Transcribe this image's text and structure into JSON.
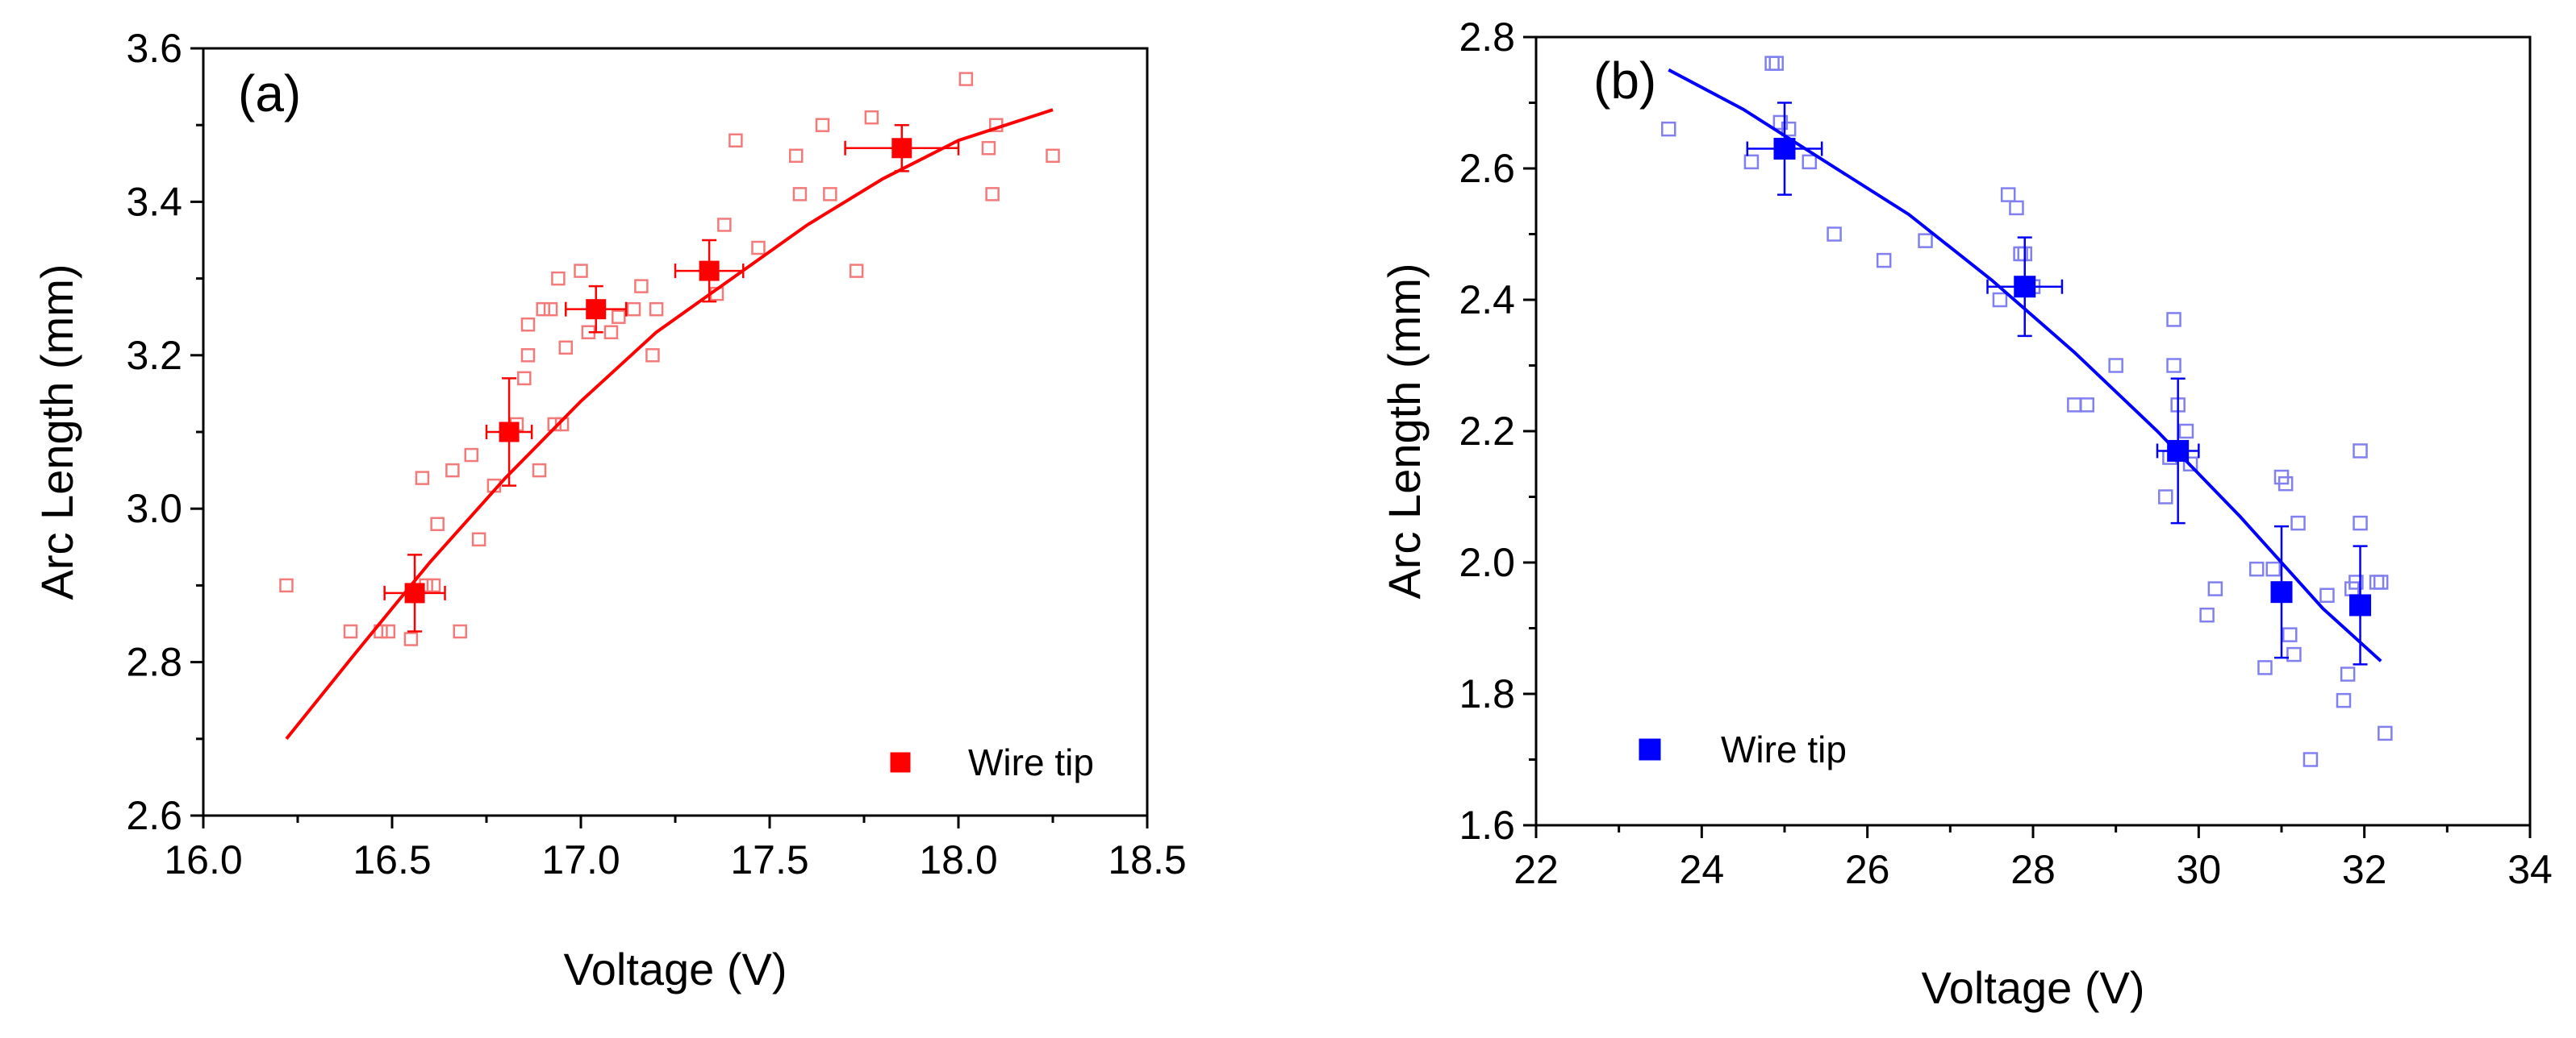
{
  "chart_data": [
    {
      "type": "scatter",
      "panel_label": "(a)",
      "xlabel": "Voltage (V)",
      "ylabel": "Arc Length (mm)",
      "xlim": [
        16.0,
        18.5
      ],
      "ylim": [
        2.6,
        3.6
      ],
      "xticks": [
        "16.0",
        "16.5",
        "17.0",
        "17.5",
        "18.0",
        "18.5"
      ],
      "yticks": [
        "2.6",
        "2.8",
        "3.0",
        "3.2",
        "3.4",
        "3.6"
      ],
      "colors": {
        "main": "#ff0000",
        "raw": "#f47a7a"
      },
      "legend": {
        "label": "Wire tip",
        "position": "bottom-right"
      },
      "raw_points": [
        [
          16.22,
          2.9
        ],
        [
          16.39,
          2.84
        ],
        [
          16.47,
          2.84
        ],
        [
          16.49,
          2.84
        ],
        [
          16.55,
          2.83
        ],
        [
          16.59,
          2.9
        ],
        [
          16.61,
          2.9
        ],
        [
          16.68,
          2.84
        ],
        [
          16.58,
          3.04
        ],
        [
          16.62,
          2.98
        ],
        [
          16.66,
          3.05
        ],
        [
          16.71,
          3.07
        ],
        [
          16.73,
          2.96
        ],
        [
          16.77,
          3.03
        ],
        [
          16.83,
          3.11
        ],
        [
          16.85,
          3.17
        ],
        [
          16.86,
          3.2
        ],
        [
          16.86,
          3.24
        ],
        [
          16.89,
          3.05
        ],
        [
          16.9,
          3.26
        ],
        [
          16.92,
          3.26
        ],
        [
          16.93,
          3.11
        ],
        [
          16.95,
          3.11
        ],
        [
          16.94,
          3.3
        ],
        [
          16.96,
          3.21
        ],
        [
          17.0,
          3.31
        ],
        [
          17.02,
          3.23
        ],
        [
          17.08,
          3.23
        ],
        [
          17.1,
          3.25
        ],
        [
          17.14,
          3.26
        ],
        [
          17.16,
          3.29
        ],
        [
          17.19,
          3.2
        ],
        [
          17.2,
          3.26
        ],
        [
          17.36,
          3.28
        ],
        [
          17.38,
          3.37
        ],
        [
          17.41,
          3.48
        ],
        [
          17.47,
          3.34
        ],
        [
          17.57,
          3.46
        ],
        [
          17.58,
          3.41
        ],
        [
          17.64,
          3.5
        ],
        [
          17.66,
          3.41
        ],
        [
          17.73,
          3.31
        ],
        [
          17.77,
          3.51
        ],
        [
          18.02,
          3.56
        ],
        [
          18.08,
          3.47
        ],
        [
          18.09,
          3.41
        ],
        [
          18.1,
          3.5
        ],
        [
          18.25,
          3.46
        ]
      ],
      "mean_points": [
        {
          "x": 16.56,
          "y": 2.89,
          "xerr": 0.08,
          "yerr": 0.05
        },
        {
          "x": 16.81,
          "y": 3.1,
          "xerr": 0.06,
          "yerr": 0.07
        },
        {
          "x": 17.04,
          "y": 3.26,
          "xerr": 0.08,
          "yerr": 0.03
        },
        {
          "x": 17.34,
          "y": 3.31,
          "xerr": 0.09,
          "yerr": 0.04
        },
        {
          "x": 17.85,
          "y": 3.47,
          "xerr": 0.15,
          "yerr": 0.03
        }
      ],
      "fit_curve": [
        [
          16.22,
          2.7
        ],
        [
          16.4,
          2.81
        ],
        [
          16.6,
          2.93
        ],
        [
          16.8,
          3.04
        ],
        [
          17.0,
          3.14
        ],
        [
          17.2,
          3.23
        ],
        [
          17.4,
          3.3
        ],
        [
          17.6,
          3.37
        ],
        [
          17.8,
          3.43
        ],
        [
          18.0,
          3.48
        ],
        [
          18.25,
          3.52
        ]
      ]
    },
    {
      "type": "scatter",
      "panel_label": "(b)",
      "xlabel": "Voltage (V)",
      "ylabel": "Arc Length (mm)",
      "xlim": [
        22,
        34
      ],
      "ylim": [
        1.6,
        2.8
      ],
      "xticks": [
        "22",
        "24",
        "26",
        "28",
        "30",
        "32",
        "34"
      ],
      "yticks": [
        "1.6",
        "1.8",
        "2.0",
        "2.2",
        "2.4",
        "2.6",
        "2.8"
      ],
      "colors": {
        "main": "#0000ff",
        "raw": "#8080f0"
      },
      "legend": {
        "label": "Wire tip",
        "position": "bottom-left"
      },
      "raw_points": [
        [
          23.6,
          2.66
        ],
        [
          24.6,
          2.61
        ],
        [
          24.85,
          2.76
        ],
        [
          24.9,
          2.76
        ],
        [
          24.95,
          2.67
        ],
        [
          25.05,
          2.66
        ],
        [
          25.3,
          2.61
        ],
        [
          25.6,
          2.5
        ],
        [
          26.2,
          2.46
        ],
        [
          26.7,
          2.49
        ],
        [
          27.6,
          2.4
        ],
        [
          27.7,
          2.56
        ],
        [
          27.8,
          2.54
        ],
        [
          27.85,
          2.47
        ],
        [
          27.9,
          2.47
        ],
        [
          28.0,
          2.42
        ],
        [
          28.5,
          2.24
        ],
        [
          28.65,
          2.24
        ],
        [
          29.0,
          2.3
        ],
        [
          29.6,
          2.1
        ],
        [
          29.65,
          2.16
        ],
        [
          29.7,
          2.3
        ],
        [
          29.7,
          2.37
        ],
        [
          29.75,
          2.24
        ],
        [
          29.85,
          2.2
        ],
        [
          29.9,
          2.15
        ],
        [
          30.1,
          1.92
        ],
        [
          30.2,
          1.96
        ],
        [
          30.7,
          1.99
        ],
        [
          30.8,
          1.84
        ],
        [
          30.9,
          1.99
        ],
        [
          31.0,
          2.13
        ],
        [
          31.05,
          2.12
        ],
        [
          31.1,
          1.89
        ],
        [
          31.15,
          1.86
        ],
        [
          31.2,
          2.06
        ],
        [
          31.35,
          1.7
        ],
        [
          31.55,
          1.95
        ],
        [
          31.75,
          1.79
        ],
        [
          31.8,
          1.83
        ],
        [
          31.85,
          1.96
        ],
        [
          31.9,
          1.97
        ],
        [
          31.95,
          2.17
        ],
        [
          31.95,
          2.06
        ],
        [
          32.15,
          1.97
        ],
        [
          32.2,
          1.97
        ],
        [
          32.25,
          1.74
        ]
      ],
      "mean_points": [
        {
          "x": 25.0,
          "y": 2.63,
          "xerr": 0.45,
          "yerr": 0.07
        },
        {
          "x": 27.9,
          "y": 2.42,
          "xerr": 0.45,
          "yerr": 0.075
        },
        {
          "x": 29.75,
          "y": 2.17,
          "xerr": 0.25,
          "yerr": 0.11
        },
        {
          "x": 31.0,
          "y": 1.955,
          "xerr": 0.1,
          "yerr": 0.1
        },
        {
          "x": 31.95,
          "y": 1.935,
          "xerr": 0.1,
          "yerr": 0.09
        }
      ],
      "fit_curve": [
        [
          23.6,
          2.75
        ],
        [
          24.5,
          2.69
        ],
        [
          25.5,
          2.61
        ],
        [
          26.5,
          2.53
        ],
        [
          27.5,
          2.43
        ],
        [
          28.5,
          2.32
        ],
        [
          29.5,
          2.2
        ],
        [
          30.5,
          2.07
        ],
        [
          31.5,
          1.93
        ],
        [
          32.2,
          1.85
        ]
      ]
    }
  ]
}
